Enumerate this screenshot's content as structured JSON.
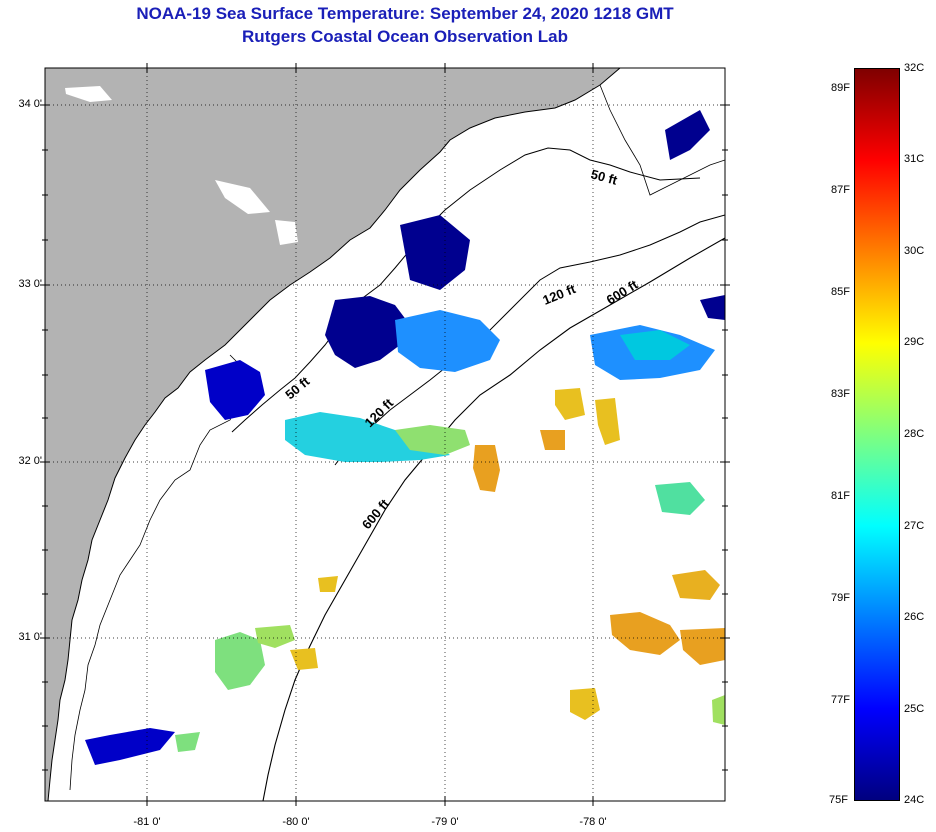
{
  "header": {
    "title_line1": "NOAA-19 Sea Surface Temperature:  September 24, 2020 1218 GMT",
    "title_line2": "Rutgers Coastal Ocean Observation Lab"
  },
  "map": {
    "lat_labels": [
      "34 0'",
      "33 0'",
      "32 0'",
      "31 0'"
    ],
    "lon_labels": [
      "-81 0'",
      "-80 0'",
      "-79 0'",
      "-78 0'"
    ],
    "contour_labels": [
      "50 ft",
      "120 ft",
      "600 ft",
      "50 ft",
      "120 ft",
      "600 ft"
    ],
    "colors": {
      "land": "#b3b3b3",
      "ocean_nodata": "#ffffff",
      "coastline": "#000000"
    }
  },
  "colorbar": {
    "fahrenheit_labels": [
      "89F",
      "87F",
      "85F",
      "83F",
      "81F",
      "79F",
      "77F",
      "75F"
    ],
    "celsius_labels": [
      "32C",
      "31C",
      "30C",
      "29C",
      "28C",
      "27C",
      "26C",
      "25C",
      "24C"
    ],
    "range_celsius": [
      24,
      32
    ],
    "colormap": [
      "#00007f",
      "#0000ff",
      "#007fff",
      "#00ffff",
      "#7fff7f",
      "#ffff00",
      "#ff7f00",
      "#ff0000",
      "#7f0000"
    ]
  }
}
